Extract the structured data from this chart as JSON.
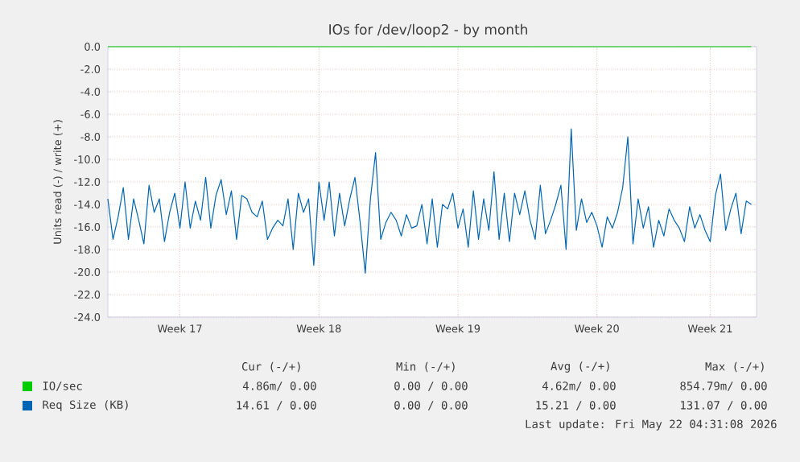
{
  "chart_data": {
    "type": "line",
    "title": "IOs for /dev/loop2 - by month",
    "ylabel": "Units read (-) / write (+)",
    "categories": [
      null,
      null,
      null,
      null,
      null,
      null,
      null,
      null,
      null,
      null,
      null,
      null,
      null,
      null,
      "Week 17",
      null,
      null,
      null,
      null,
      null,
      null,
      null,
      null,
      null,
      null,
      null,
      null,
      null,
      null,
      null,
      null,
      null,
      null,
      null,
      null,
      null,
      null,
      null,
      null,
      null,
      null,
      "Week 18",
      null,
      null,
      null,
      null,
      null,
      null,
      null,
      null,
      null,
      null,
      null,
      null,
      null,
      null,
      null,
      null,
      null,
      null,
      null,
      null,
      null,
      null,
      null,
      null,
      null,
      null,
      "Week 19",
      null,
      null,
      null,
      null,
      null,
      null,
      null,
      null,
      null,
      null,
      null,
      null,
      null,
      null,
      null,
      null,
      null,
      null,
      null,
      null,
      null,
      null,
      null,
      null,
      null,
      null,
      "Week 20",
      null,
      null,
      null,
      null,
      null,
      null,
      null,
      null,
      null,
      null,
      null,
      null,
      null,
      null,
      null,
      null,
      null,
      null,
      null,
      null,
      null,
      "Week 21",
      null,
      null,
      null,
      null,
      null,
      null,
      null,
      null
    ],
    "ylim": [
      -24,
      0
    ],
    "yticks": [
      {
        "value": 0,
        "label": "0.0"
      },
      {
        "value": -2,
        "label": "-2.0"
      },
      {
        "value": -4,
        "label": "-4.0"
      },
      {
        "value": -6,
        "label": "-6.0"
      },
      {
        "value": -8,
        "label": "-8.0"
      },
      {
        "value": -10,
        "label": "-10.0"
      },
      {
        "value": -12,
        "label": "-12.0"
      },
      {
        "value": -14,
        "label": "-14.0"
      },
      {
        "value": -16,
        "label": "-16.0"
      },
      {
        "value": -18,
        "label": "-18.0"
      },
      {
        "value": -20,
        "label": "-20.0"
      },
      {
        "value": -22,
        "label": "-22.0"
      },
      {
        "value": -24,
        "label": "-24.0"
      }
    ],
    "grid": true,
    "legend": "bottom",
    "marker": "none",
    "line_style": "solid",
    "series": [
      {
        "name": "IO/sec",
        "color": "#00cc00",
        "values": [
          0,
          0,
          0,
          0,
          0,
          0,
          0,
          0,
          0,
          0,
          0,
          0,
          0,
          0,
          0,
          0,
          0,
          0,
          0,
          0,
          0,
          0,
          0,
          0,
          0,
          0,
          0,
          0,
          0,
          0,
          0,
          0,
          0,
          0,
          0,
          0,
          0,
          0,
          0,
          0,
          0,
          0,
          0,
          0,
          0,
          0,
          0,
          0,
          0,
          0,
          0,
          0,
          0,
          0,
          0,
          0,
          0,
          0,
          0,
          0,
          0,
          0,
          0,
          0,
          0,
          0,
          0,
          0,
          0,
          0,
          0,
          0,
          0,
          0,
          0,
          0,
          0,
          0,
          0,
          0,
          0,
          0,
          0,
          0,
          0,
          0,
          0,
          0,
          0,
          0,
          0,
          0,
          0,
          0,
          0,
          0,
          0,
          0,
          0,
          0,
          0,
          0,
          0,
          0,
          0,
          0,
          0,
          0,
          0,
          0,
          0,
          0,
          0,
          0,
          0,
          0,
          0,
          0,
          0,
          0,
          0,
          0,
          0,
          0,
          0,
          0
        ]
      },
      {
        "name": "Req Size (KB)",
        "color": "#0066b3",
        "values": [
          -13.5,
          -17.1,
          -15.1,
          -12.5,
          -17.1,
          -13.5,
          -15.4,
          -17.5,
          -12.3,
          -14.7,
          -13.5,
          -17.3,
          -14.7,
          -13.0,
          -16.1,
          -12.0,
          -16.1,
          -13.7,
          -15.4,
          -11.6,
          -16.1,
          -13.2,
          -11.8,
          -14.9,
          -12.8,
          -17.1,
          -13.2,
          -13.5,
          -14.7,
          -15.1,
          -13.7,
          -17.1,
          -16.1,
          -15.4,
          -15.9,
          -13.5,
          -18.0,
          -13.0,
          -14.7,
          -13.5,
          -19.4,
          -12.0,
          -15.4,
          -12.0,
          -16.8,
          -13.0,
          -15.9,
          -13.5,
          -11.6,
          -15.6,
          -20.1,
          -13.5,
          -9.4,
          -17.1,
          -15.6,
          -14.7,
          -15.4,
          -16.8,
          -14.9,
          -16.1,
          -15.9,
          -14.0,
          -17.5,
          -13.5,
          -17.8,
          -14.0,
          -14.4,
          -13.0,
          -16.1,
          -14.4,
          -17.8,
          -12.8,
          -17.1,
          -13.5,
          -16.3,
          -11.1,
          -17.1,
          -13.0,
          -17.3,
          -13.0,
          -14.9,
          -12.8,
          -15.4,
          -17.1,
          -12.3,
          -16.6,
          -15.4,
          -14.0,
          -12.3,
          -18.0,
          -7.3,
          -16.3,
          -13.5,
          -15.6,
          -14.7,
          -15.9,
          -17.8,
          -15.1,
          -16.1,
          -14.7,
          -12.5,
          -8.0,
          -17.5,
          -13.5,
          -16.1,
          -14.2,
          -17.8,
          -15.4,
          -16.8,
          -14.4,
          -15.4,
          -16.1,
          -17.3,
          -14.2,
          -16.1,
          -14.9,
          -16.3,
          -17.3,
          -13.2,
          -11.3,
          -16.3,
          -14.4,
          -13.0,
          -16.6,
          -13.7,
          -14.0
        ]
      }
    ],
    "annotations": [
      "Cur (-/+)",
      "Min (-/+)",
      "Avg (-/+)",
      "Max (-/+)",
      "4.86m/ 0.00",
      "0.00 / 0.00",
      "4.62m/ 0.00",
      "854.79m/ 0.00",
      "14.61 / 0.00",
      "0.00 / 0.00",
      "15.21 / 0.00",
      "131.07 / 0.00",
      "Last update: Fri May 22 04:31:08 2026"
    ]
  }
}
